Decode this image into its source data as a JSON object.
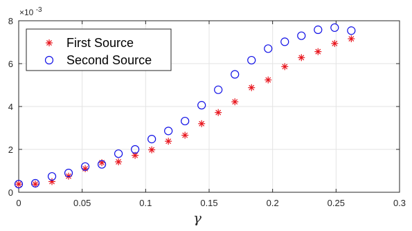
{
  "chart_data": {
    "type": "scatter",
    "title": "",
    "xlabel": "γ",
    "ylabel": "",
    "xlim": [
      0,
      0.3
    ],
    "ylim": [
      0,
      8
    ],
    "x_ticks": [
      0,
      0.05,
      0.1,
      0.15,
      0.2,
      0.25,
      0.3
    ],
    "x_tick_labels": [
      "0",
      "0.05",
      "0.1",
      "0.15",
      "0.2",
      "0.25",
      "0.3"
    ],
    "y_ticks": [
      0,
      2,
      4,
      6,
      8
    ],
    "y_tick_labels": [
      "0",
      "2",
      "4",
      "6",
      "8"
    ],
    "y_multiplier_base": "×10",
    "y_multiplier_exponent": "-3",
    "grid": true,
    "legend_position": "top-left",
    "series": [
      {
        "name": "First Source",
        "marker": "asterisk",
        "color": "#e8141c",
        "x": [
          0,
          0.0131,
          0.0262,
          0.0393,
          0.0524,
          0.0655,
          0.0786,
          0.0917,
          0.1048,
          0.1179,
          0.131,
          0.1441,
          0.1572,
          0.1703,
          0.1834,
          0.1965,
          0.2096,
          0.2227,
          0.2358,
          0.2489,
          0.262
        ],
        "y": [
          0.38,
          0.38,
          0.5,
          0.75,
          1.1,
          1.38,
          1.42,
          1.72,
          1.98,
          2.38,
          2.66,
          3.2,
          3.72,
          4.22,
          4.88,
          5.24,
          5.86,
          6.28,
          6.56,
          6.94,
          7.16
        ]
      },
      {
        "name": "Second Source",
        "marker": "circle",
        "color": "#1010e6",
        "x": [
          0,
          0.0131,
          0.0262,
          0.0393,
          0.0524,
          0.0655,
          0.0786,
          0.0917,
          0.1048,
          0.1179,
          0.131,
          0.1441,
          0.1572,
          0.1703,
          0.1834,
          0.1965,
          0.2096,
          0.2227,
          0.2358,
          0.2489,
          0.262
        ],
        "y": [
          0.38,
          0.42,
          0.74,
          0.9,
          1.2,
          1.3,
          1.8,
          2.0,
          2.48,
          2.86,
          3.32,
          4.06,
          4.78,
          5.5,
          6.16,
          6.7,
          7.02,
          7.3,
          7.58,
          7.68,
          7.54
        ]
      }
    ]
  }
}
